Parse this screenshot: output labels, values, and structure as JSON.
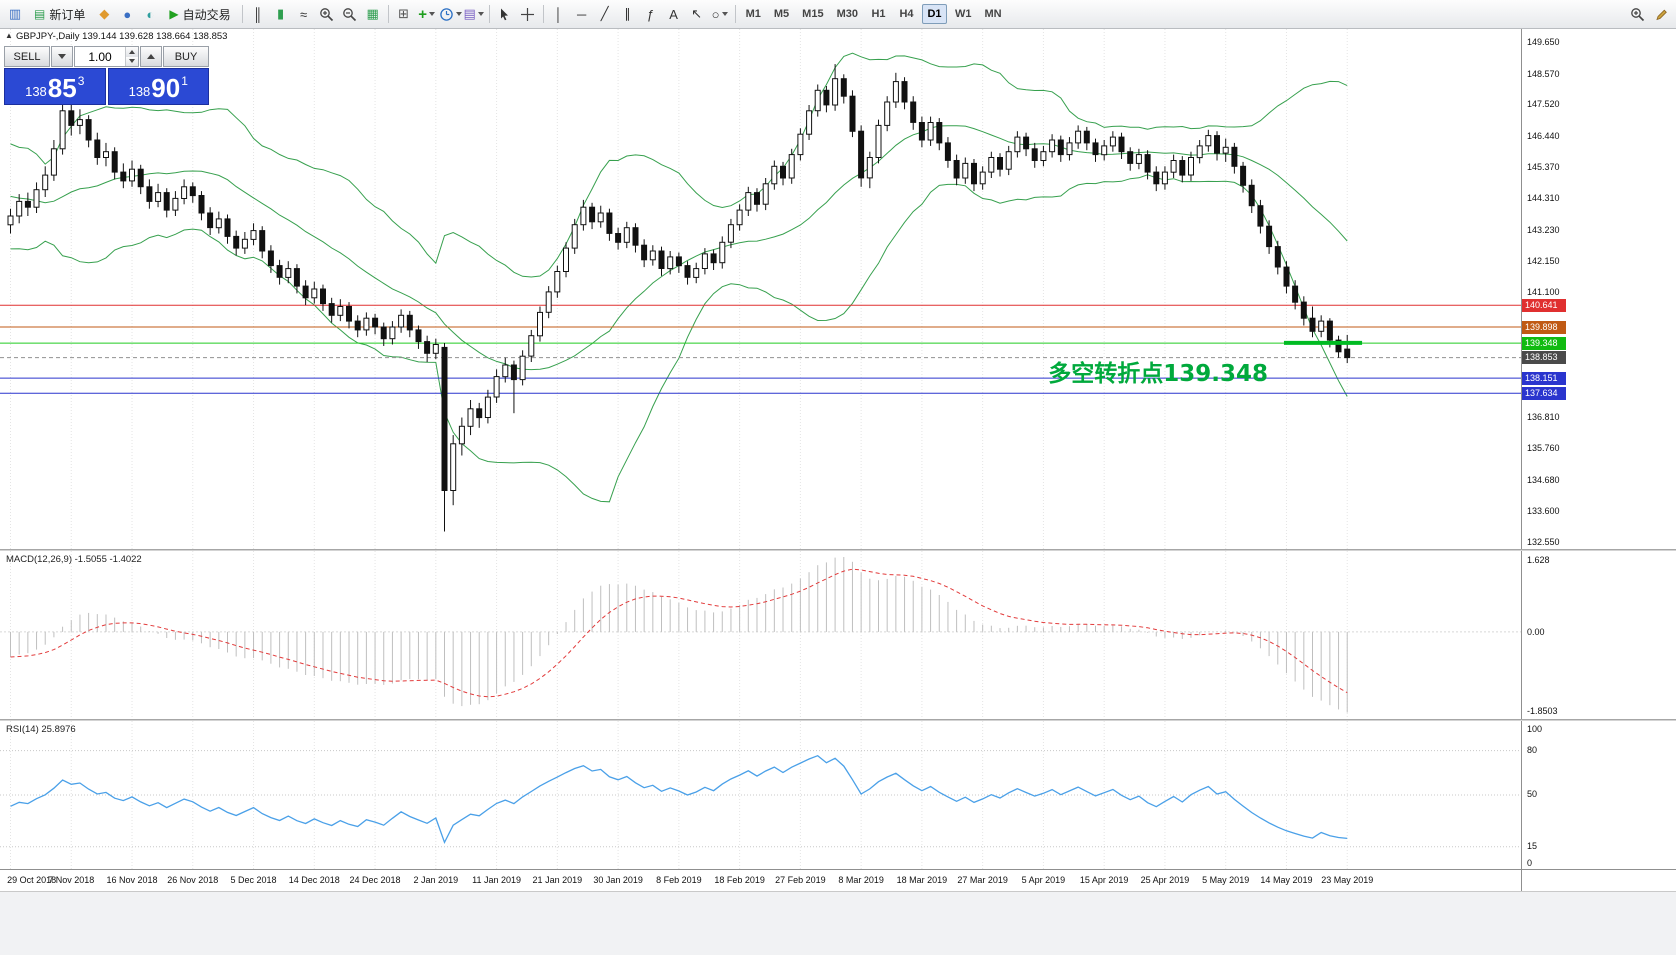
{
  "toolbar": {
    "items": [
      {
        "type": "icon",
        "name": "charts-icon",
        "glyph": "▥",
        "color": "#3a6fc4"
      },
      {
        "type": "button",
        "name": "new-order-button",
        "glyph": "▤",
        "glyph_color": "#2e9e4f",
        "label": "新订单"
      },
      {
        "type": "icon",
        "name": "profiles-icon",
        "glyph": "◆",
        "color": "#e09a2e"
      },
      {
        "type": "icon",
        "name": "market-watch-icon",
        "glyph": "●",
        "color": "#3a6fc4"
      },
      {
        "type": "icon",
        "name": "data-window-icon",
        "glyph": "◐",
        "color": "#2e9e9e"
      },
      {
        "type": "button",
        "name": "autotrading-button",
        "glyph": "▶",
        "glyph_color": "#21a121",
        "label": "自动交易"
      },
      {
        "type": "sep"
      },
      {
        "type": "icon",
        "name": "bar-chart-icon",
        "glyph": "║",
        "color": "#333333"
      },
      {
        "type": "icon",
        "name": "candlestick-chart-icon",
        "glyph": "▮",
        "color": "#2e9e4f"
      },
      {
        "type": "icon",
        "name": "line-chart-icon",
        "glyph": "≈",
        "color": "#333333"
      },
      {
        "type": "icon",
        "name": "zoom-in-icon",
        "svg": "zoomin"
      },
      {
        "type": "icon",
        "name": "zoom-out-icon",
        "svg": "zoomout"
      },
      {
        "type": "icon",
        "name": "grid-icon",
        "glyph": "▦",
        "color": "#2e9e4f"
      },
      {
        "type": "sep"
      },
      {
        "type": "icon",
        "name": "tile-windows-icon",
        "glyph": "⊞",
        "color": "#555555"
      },
      {
        "type": "icon",
        "name": "indicators-icon",
        "glyph": "+",
        "color": "#1e9e1e",
        "caret": true
      },
      {
        "type": "icon",
        "name": "periods-icon",
        "svg": "clock",
        "caret": true
      },
      {
        "type": "icon",
        "name": "templates-icon",
        "glyph": "▤",
        "color": "#7a5fc4",
        "caret": true
      },
      {
        "type": "sep"
      },
      {
        "type": "icon",
        "name": "cursor-icon",
        "svg": "cursor"
      },
      {
        "type": "icon",
        "name": "crosshair-icon",
        "svg": "crosshair"
      },
      {
        "type": "sep"
      },
      {
        "type": "icon",
        "name": "vertical-line-icon",
        "glyph": "│",
        "color": "#333333"
      },
      {
        "type": "icon",
        "name": "horizontal-line-icon",
        "glyph": "─",
        "color": "#333333"
      },
      {
        "type": "icon",
        "name": "trendline-icon",
        "glyph": "╱",
        "color": "#333333"
      },
      {
        "type": "icon",
        "name": "equidistant-channel-icon",
        "glyph": "∥",
        "color": "#333333"
      },
      {
        "type": "icon",
        "name": "fibonacci-icon",
        "glyph": "ƒ",
        "color": "#333333"
      },
      {
        "type": "icon",
        "name": "text-label-icon",
        "glyph": "A",
        "color": "#333333"
      },
      {
        "type": "icon",
        "name": "arrows-icon",
        "glyph": "↖",
        "color": "#333333"
      },
      {
        "type": "icon",
        "name": "shapes-icon",
        "glyph": "○",
        "color": "#333333",
        "caret": true
      },
      {
        "type": "sep"
      }
    ],
    "timeframes": [
      "M1",
      "M5",
      "M15",
      "M30",
      "H1",
      "H4",
      "D1",
      "W1",
      "MN"
    ],
    "active_timeframe": "D1",
    "right_items": [
      {
        "name": "search-plus-icon",
        "svg": "zoomin"
      },
      {
        "name": "edit-icon",
        "svg": "pencil"
      }
    ]
  },
  "quote_panel": {
    "sell_label": "SELL",
    "buy_label": "BUY",
    "volume": "1.00",
    "sell_price_prefix": "138",
    "sell_price_big": "85",
    "sell_price_sup": "3",
    "buy_price_prefix": "138",
    "buy_price_big": "90",
    "buy_price_sup": "1"
  },
  "chart": {
    "collapse_glyph": "▲",
    "symbol_line": "GBPJPY-,Daily 139.144 139.628 138.664 138.853",
    "annotation": {
      "text": "多空转折点139.348",
      "color": "#00a93c"
    },
    "y_axis_labels": [
      "149.650",
      "148.570",
      "147.520",
      "146.440",
      "145.370",
      "144.310",
      "143.230",
      "142.150",
      "141.100",
      "136.810",
      "135.760",
      "134.680",
      "133.600",
      "132.550"
    ],
    "current_price_label": "138.853"
  },
  "macd": {
    "label": "MACD(12,26,9) -1.5055 -1.4022",
    "axis_top": "1.628",
    "axis_zero": "0.00",
    "axis_bottom": "-1.8503",
    "histogram_color": "#bfbfbf",
    "signal_color": "#e23b3b"
  },
  "rsi": {
    "label": "RSI(14) 25.8976",
    "axis_top": "100",
    "axis_bottom": "0",
    "levels": [
      80,
      50,
      15
    ],
    "line_color": "#4aa0e8"
  },
  "chart_data": {
    "type": "candlestick",
    "symbol": "GBPJPY-",
    "period": "Daily",
    "ohlc_last": [
      139.144,
      139.628,
      138.664,
      138.853
    ],
    "price_range": [
      132.3,
      150.1
    ],
    "label_every": 7,
    "dates": [
      "29 Oct 2018",
      "7 Nov 2018",
      "16 Nov 2018",
      "26 Nov 2018",
      "5 Dec 2018",
      "14 Dec 2018",
      "24 Dec 2018",
      "2 Jan 2019",
      "11 Jan 2019",
      "21 Jan 2019",
      "30 Jan 2019",
      "8 Feb 2019",
      "18 Feb 2019",
      "27 Feb 2019",
      "8 Mar 2019",
      "18 Mar 2019",
      "27 Mar 2019",
      "5 Apr 2019",
      "15 Apr 2019",
      "25 Apr 2019",
      "5 May 2019",
      "14 May 2019",
      "23 May 2019"
    ],
    "warmup_closes": [
      146.2,
      145.4,
      144.6,
      145.8,
      146.4,
      145.0,
      144.2,
      143.6,
      144.8,
      145.6,
      144.4,
      143.5,
      142.9,
      143.8,
      144.6,
      143.9,
      143.2,
      143.9,
      144.5,
      143.6
    ],
    "candles_ohlc": [
      [
        143.4,
        143.95,
        143.1,
        143.7
      ],
      [
        143.7,
        144.45,
        143.45,
        144.2
      ],
      [
        144.2,
        144.5,
        143.7,
        144.0
      ],
      [
        144.0,
        144.85,
        143.8,
        144.6
      ],
      [
        144.6,
        145.4,
        144.35,
        145.1
      ],
      [
        145.1,
        146.3,
        144.9,
        146.0
      ],
      [
        146.0,
        147.9,
        145.8,
        147.3
      ],
      [
        147.3,
        147.65,
        146.45,
        146.8
      ],
      [
        146.8,
        147.35,
        146.5,
        147.0
      ],
      [
        147.0,
        147.15,
        146.05,
        146.3
      ],
      [
        146.3,
        146.55,
        145.45,
        145.7
      ],
      [
        145.7,
        146.2,
        145.4,
        145.9
      ],
      [
        145.9,
        146.05,
        144.95,
        145.2
      ],
      [
        145.2,
        145.5,
        144.65,
        144.9
      ],
      [
        144.9,
        145.6,
        144.7,
        145.3
      ],
      [
        145.3,
        145.45,
        144.45,
        144.7
      ],
      [
        144.7,
        144.95,
        143.95,
        144.2
      ],
      [
        144.2,
        144.8,
        144.0,
        144.5
      ],
      [
        144.5,
        144.65,
        143.65,
        143.9
      ],
      [
        143.9,
        144.55,
        143.7,
        144.3
      ],
      [
        144.3,
        144.95,
        144.1,
        144.7
      ],
      [
        144.7,
        144.85,
        144.15,
        144.4
      ],
      [
        144.4,
        144.55,
        143.55,
        143.8
      ],
      [
        143.8,
        144.0,
        143.05,
        143.3
      ],
      [
        143.3,
        143.85,
        143.1,
        143.6
      ],
      [
        143.6,
        143.75,
        142.75,
        143.0
      ],
      [
        143.0,
        143.2,
        142.35,
        142.6
      ],
      [
        142.6,
        143.15,
        142.4,
        142.9
      ],
      [
        142.9,
        143.45,
        142.7,
        143.2
      ],
      [
        143.2,
        143.35,
        142.25,
        142.5
      ],
      [
        142.5,
        142.7,
        141.75,
        142.0
      ],
      [
        142.0,
        142.2,
        141.35,
        141.6
      ],
      [
        141.6,
        142.15,
        141.4,
        141.9
      ],
      [
        141.9,
        142.05,
        141.05,
        141.3
      ],
      [
        141.3,
        141.5,
        140.65,
        140.9
      ],
      [
        140.9,
        141.45,
        140.7,
        141.2
      ],
      [
        141.2,
        141.35,
        140.45,
        140.7
      ],
      [
        140.7,
        140.9,
        140.05,
        140.3
      ],
      [
        140.3,
        140.85,
        140.1,
        140.6
      ],
      [
        140.6,
        140.75,
        139.85,
        140.1
      ],
      [
        140.1,
        140.3,
        139.55,
        139.8
      ],
      [
        139.8,
        140.4,
        139.6,
        140.2
      ],
      [
        140.2,
        140.35,
        139.65,
        139.9
      ],
      [
        139.9,
        140.05,
        139.25,
        139.5
      ],
      [
        139.5,
        140.1,
        139.3,
        139.9
      ],
      [
        139.9,
        140.5,
        139.7,
        140.3
      ],
      [
        140.3,
        140.45,
        139.55,
        139.8
      ],
      [
        139.8,
        139.95,
        139.15,
        139.4
      ],
      [
        139.4,
        139.6,
        138.7,
        139.0
      ],
      [
        139.0,
        139.5,
        138.8,
        139.3
      ],
      [
        139.2,
        139.35,
        132.9,
        134.3
      ],
      [
        134.3,
        136.2,
        133.8,
        135.9
      ],
      [
        135.9,
        136.8,
        135.5,
        136.5
      ],
      [
        136.5,
        137.4,
        136.2,
        137.1
      ],
      [
        137.1,
        137.3,
        136.45,
        136.8
      ],
      [
        136.8,
        137.75,
        136.6,
        137.5
      ],
      [
        137.5,
        138.45,
        137.3,
        138.2
      ],
      [
        138.2,
        138.85,
        138.0,
        138.6
      ],
      [
        138.6,
        138.75,
        136.95,
        138.1
      ],
      [
        138.1,
        139.1,
        137.9,
        138.9
      ],
      [
        138.9,
        139.8,
        138.7,
        139.6
      ],
      [
        139.6,
        140.6,
        139.4,
        140.4
      ],
      [
        140.4,
        141.3,
        140.2,
        141.1
      ],
      [
        141.1,
        142.0,
        140.9,
        141.8
      ],
      [
        141.8,
        142.8,
        141.6,
        142.6
      ],
      [
        142.6,
        143.6,
        142.4,
        143.4
      ],
      [
        143.4,
        144.25,
        143.2,
        144.0
      ],
      [
        144.0,
        144.15,
        143.25,
        143.5
      ],
      [
        143.5,
        144.05,
        143.3,
        143.8
      ],
      [
        143.8,
        143.95,
        142.85,
        143.1
      ],
      [
        143.1,
        143.3,
        142.55,
        142.8
      ],
      [
        142.8,
        143.5,
        142.6,
        143.3
      ],
      [
        143.3,
        143.45,
        142.45,
        142.7
      ],
      [
        142.7,
        142.9,
        141.95,
        142.2
      ],
      [
        142.2,
        142.7,
        142.0,
        142.5
      ],
      [
        142.5,
        142.65,
        141.65,
        141.9
      ],
      [
        141.9,
        142.5,
        141.7,
        142.3
      ],
      [
        142.3,
        142.45,
        141.75,
        142.0
      ],
      [
        142.0,
        142.15,
        141.35,
        141.6
      ],
      [
        141.6,
        142.1,
        141.4,
        141.9
      ],
      [
        141.9,
        142.6,
        141.7,
        142.4
      ],
      [
        142.4,
        142.55,
        141.85,
        142.1
      ],
      [
        142.1,
        143.0,
        141.9,
        142.8
      ],
      [
        142.8,
        143.6,
        142.6,
        143.4
      ],
      [
        143.4,
        144.1,
        143.2,
        143.9
      ],
      [
        143.9,
        144.7,
        143.7,
        144.5
      ],
      [
        144.5,
        144.65,
        143.85,
        144.1
      ],
      [
        144.1,
        145.0,
        143.9,
        144.8
      ],
      [
        144.8,
        145.6,
        144.6,
        145.4
      ],
      [
        145.4,
        145.55,
        144.75,
        145.0
      ],
      [
        145.0,
        146.0,
        144.8,
        145.8
      ],
      [
        145.8,
        146.7,
        145.6,
        146.5
      ],
      [
        146.5,
        147.5,
        146.3,
        147.3
      ],
      [
        147.3,
        148.2,
        147.1,
        148.0
      ],
      [
        148.0,
        148.15,
        147.25,
        147.5
      ],
      [
        147.5,
        148.9,
        147.3,
        148.4
      ],
      [
        148.4,
        148.55,
        147.55,
        147.8
      ],
      [
        147.8,
        148.0,
        146.4,
        146.6
      ],
      [
        146.6,
        146.8,
        144.7,
        145.0
      ],
      [
        145.0,
        145.9,
        144.65,
        145.7
      ],
      [
        145.7,
        147.0,
        145.5,
        146.8
      ],
      [
        146.8,
        147.8,
        146.6,
        147.6
      ],
      [
        147.6,
        148.6,
        147.4,
        148.3
      ],
      [
        148.3,
        148.45,
        147.35,
        147.6
      ],
      [
        147.6,
        147.8,
        146.65,
        146.9
      ],
      [
        146.9,
        147.1,
        146.05,
        146.3
      ],
      [
        146.3,
        147.1,
        146.1,
        146.9
      ],
      [
        146.9,
        147.05,
        145.95,
        146.2
      ],
      [
        146.2,
        146.4,
        145.35,
        145.6
      ],
      [
        145.6,
        145.8,
        144.75,
        145.0
      ],
      [
        145.0,
        145.7,
        144.8,
        145.5
      ],
      [
        145.5,
        145.65,
        144.55,
        144.8
      ],
      [
        144.8,
        145.4,
        144.6,
        145.2
      ],
      [
        145.2,
        145.9,
        145.0,
        145.7
      ],
      [
        145.7,
        145.85,
        145.05,
        145.3
      ],
      [
        145.3,
        146.1,
        145.1,
        145.9
      ],
      [
        145.9,
        146.6,
        145.7,
        146.4
      ],
      [
        146.4,
        146.55,
        145.75,
        146.0
      ],
      [
        146.0,
        146.2,
        145.35,
        145.6
      ],
      [
        145.6,
        146.1,
        145.4,
        145.9
      ],
      [
        145.9,
        146.5,
        145.7,
        146.3
      ],
      [
        146.3,
        146.45,
        145.55,
        145.8
      ],
      [
        145.8,
        146.4,
        145.6,
        146.2
      ],
      [
        146.2,
        146.8,
        146.0,
        146.6
      ],
      [
        146.6,
        146.75,
        145.95,
        146.2
      ],
      [
        146.2,
        146.35,
        145.55,
        145.8
      ],
      [
        145.8,
        146.3,
        145.6,
        146.1
      ],
      [
        146.1,
        146.6,
        145.9,
        146.4
      ],
      [
        146.4,
        146.55,
        145.65,
        145.9
      ],
      [
        145.9,
        146.05,
        145.25,
        145.5
      ],
      [
        145.5,
        146.0,
        145.3,
        145.8
      ],
      [
        145.8,
        145.95,
        144.95,
        145.2
      ],
      [
        145.2,
        145.4,
        144.55,
        144.8
      ],
      [
        144.8,
        145.4,
        144.6,
        145.2
      ],
      [
        145.2,
        145.8,
        145.0,
        145.6
      ],
      [
        145.6,
        145.75,
        144.85,
        145.1
      ],
      [
        145.1,
        145.9,
        144.9,
        145.7
      ],
      [
        145.7,
        146.3,
        145.5,
        146.1
      ],
      [
        146.1,
        146.65,
        145.9,
        146.45
      ],
      [
        146.45,
        146.6,
        145.6,
        145.85
      ],
      [
        145.85,
        146.35,
        145.55,
        146.05
      ],
      [
        146.05,
        146.2,
        145.15,
        145.4
      ],
      [
        145.4,
        145.55,
        144.5,
        144.75
      ],
      [
        144.75,
        144.95,
        143.8,
        144.05
      ],
      [
        144.05,
        144.25,
        143.1,
        143.35
      ],
      [
        143.35,
        143.55,
        142.4,
        142.65
      ],
      [
        142.65,
        142.85,
        141.7,
        141.95
      ],
      [
        141.95,
        142.15,
        141.05,
        141.3
      ],
      [
        141.3,
        141.5,
        140.5,
        140.75
      ],
      [
        140.75,
        140.95,
        139.95,
        140.2
      ],
      [
        140.2,
        140.6,
        139.55,
        139.75
      ],
      [
        139.75,
        140.3,
        139.55,
        140.1
      ],
      [
        140.1,
        140.2,
        139.2,
        139.45
      ],
      [
        139.45,
        139.6,
        138.85,
        139.05
      ],
      [
        139.144,
        139.628,
        138.664,
        138.853
      ]
    ],
    "hlines": [
      {
        "price": 140.641,
        "color": "#e03030",
        "style": "solid",
        "label": "140.641",
        "label_bg": "#e03030"
      },
      {
        "price": 139.898,
        "color": "#c05a14",
        "style": "solid",
        "label": "139.898",
        "label_bg": "#c05a14"
      },
      {
        "price": 139.348,
        "color": "#22cc22",
        "style": "solid",
        "label": "139.348",
        "label_bg": "#11bb11"
      },
      {
        "price": 138.853,
        "color": "#909090",
        "style": "dash",
        "label": "138.853",
        "label_bg": "#4a4a4a"
      },
      {
        "price": 138.151,
        "color": "#2a35ce",
        "style": "solid",
        "label": "138.151",
        "label_bg": "#2a35ce"
      },
      {
        "price": 137.634,
        "color": "#2a35ce",
        "style": "solid",
        "label": "137.634",
        "label_bg": "#2a35ce"
      }
    ],
    "trend_segment": {
      "price": 139.355,
      "from_index": 147,
      "to_index": 156,
      "color": "#00bb22",
      "width": 4
    },
    "indicators": {
      "bollinger_period": 20,
      "bollinger_dev": 2,
      "bollinger_color": "#37a04e",
      "macd": [
        12,
        26,
        9
      ],
      "rsi_period": 14
    },
    "candle_up_color": "#ffffff",
    "candle_down_color": "#111111",
    "candle_border": "#111111"
  }
}
